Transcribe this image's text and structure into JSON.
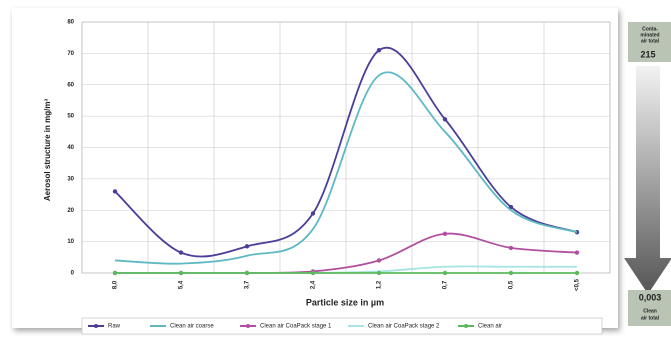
{
  "chart_data": {
    "type": "line",
    "y_label": "Aerosol structure in mg/m³",
    "x_label": "Particle size in µm",
    "categories": [
      "8,0",
      "5,4",
      "3,7",
      "2,4",
      "1,2",
      "0,7",
      "0,5",
      "<0,5"
    ],
    "ylim": [
      0,
      80
    ],
    "yticks": [
      0,
      10,
      20,
      30,
      40,
      50,
      60,
      70,
      80
    ],
    "grid": true,
    "smooth": true,
    "series": [
      {
        "name": "Raw",
        "color": "#4a3f98",
        "marker": true,
        "values": [
          26,
          6.5,
          8.5,
          19,
          71,
          49,
          21,
          13
        ]
      },
      {
        "name": "Clean air coarse",
        "color": "#5fb9c3",
        "marker": false,
        "values": [
          4,
          3,
          5.5,
          14,
          63,
          45,
          20,
          13
        ]
      },
      {
        "name": "Clean air CoaPack stage 1",
        "color": "#b2509f",
        "marker": true,
        "values": [
          0,
          0,
          0,
          0.5,
          4,
          12.5,
          8,
          6.5
        ]
      },
      {
        "name": "Clean air CoaPack stage 2",
        "color": "#a6e3e3",
        "marker": false,
        "values": [
          0,
          0,
          0,
          0,
          0.5,
          2,
          2,
          2
        ]
      },
      {
        "name": "Clean air",
        "color": "#5cb85c",
        "marker": true,
        "values": [
          0,
          0,
          0,
          0,
          0,
          0,
          0,
          0
        ]
      }
    ]
  },
  "side_panel": {
    "top_label": [
      "Conta-",
      "minated",
      "air total"
    ],
    "top_value": "215",
    "bottom_value": "0,003",
    "bottom_label": [
      "Clean",
      "air total"
    ]
  }
}
